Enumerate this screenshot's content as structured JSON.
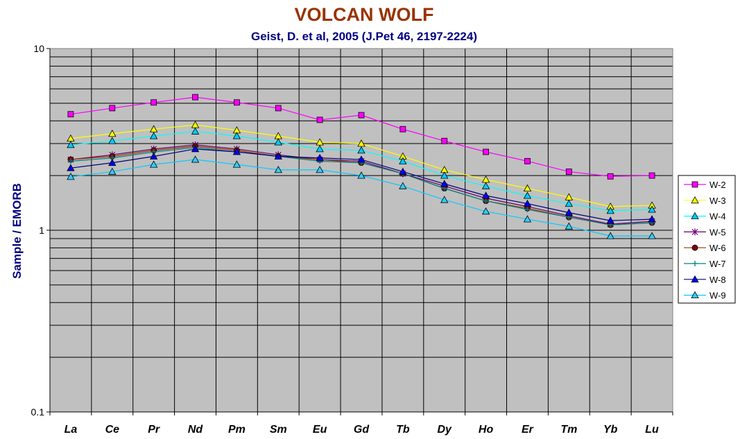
{
  "chart_data": {
    "type": "line",
    "title": "VOLCAN WOLF",
    "subtitle": "Geist, D. et al, 2005 (J.Pet 46, 2197-2224)",
    "xlabel": "",
    "ylabel": "Sample / EMORB",
    "yscale": "log",
    "ylim": [
      0.1,
      10
    ],
    "yticks": [
      "0.1",
      "1",
      "10"
    ],
    "grid": true,
    "plot_background": "#c0c0c0",
    "legend_position": "right",
    "categories": [
      "La",
      "Ce",
      "Pr",
      "Nd",
      "Pm",
      "Sm",
      "Eu",
      "Gd",
      "Tb",
      "Dy",
      "Ho",
      "Er",
      "Tm",
      "Yb",
      "Lu"
    ],
    "series": [
      {
        "name": "W-2",
        "color": "#ff00ff",
        "fill": "#ff00ff",
        "marker": "square",
        "values": [
          4.35,
          4.7,
          5.05,
          5.4,
          5.05,
          4.7,
          4.05,
          4.3,
          3.6,
          3.1,
          2.7,
          2.4,
          2.1,
          1.98,
          2.0
        ]
      },
      {
        "name": "W-3",
        "color": "#ffff00",
        "fill": "#ffff00",
        "marker": "triangle",
        "values": [
          3.2,
          3.4,
          3.6,
          3.8,
          3.55,
          3.3,
          3.05,
          3.0,
          2.55,
          2.15,
          1.9,
          1.7,
          1.52,
          1.35,
          1.37
        ]
      },
      {
        "name": "W-4",
        "color": "#00ffff",
        "fill": "#00ccff",
        "marker": "triangle",
        "values": [
          2.95,
          3.1,
          3.3,
          3.5,
          3.3,
          3.05,
          2.8,
          2.75,
          2.4,
          2.0,
          1.75,
          1.55,
          1.4,
          1.28,
          1.3
        ]
      },
      {
        "name": "W-5",
        "color": "#660066",
        "fill": "#800080",
        "marker": "star",
        "values": [
          2.45,
          2.6,
          2.8,
          2.95,
          2.8,
          2.6,
          2.45,
          2.4,
          2.05,
          1.75,
          1.5,
          1.35,
          1.2,
          1.08,
          1.12
        ]
      },
      {
        "name": "W-6",
        "color": "#993300",
        "fill": "#800000",
        "marker": "circle",
        "values": [
          2.45,
          2.55,
          2.75,
          2.9,
          2.75,
          2.55,
          2.45,
          2.35,
          2.05,
          1.7,
          1.45,
          1.32,
          1.18,
          1.07,
          1.1
        ]
      },
      {
        "name": "W-7",
        "color": "#008080",
        "fill": "#008080",
        "marker": "plus",
        "values": [
          2.4,
          2.5,
          2.7,
          2.85,
          2.7,
          2.55,
          2.4,
          2.35,
          2.05,
          1.7,
          1.45,
          1.3,
          1.18,
          1.07,
          1.1
        ]
      },
      {
        "name": "W-8",
        "color": "#000080",
        "fill": "#0000ff",
        "marker": "triangle",
        "values": [
          2.2,
          2.35,
          2.55,
          2.8,
          2.7,
          2.55,
          2.5,
          2.45,
          2.1,
          1.8,
          1.55,
          1.4,
          1.25,
          1.13,
          1.15
        ]
      },
      {
        "name": "W-9",
        "color": "#00ccff",
        "fill": "#33ccff",
        "marker": "triangle",
        "values": [
          1.97,
          2.1,
          2.3,
          2.45,
          2.3,
          2.15,
          2.15,
          2.0,
          1.75,
          1.47,
          1.27,
          1.15,
          1.05,
          0.93,
          0.93
        ]
      }
    ]
  }
}
